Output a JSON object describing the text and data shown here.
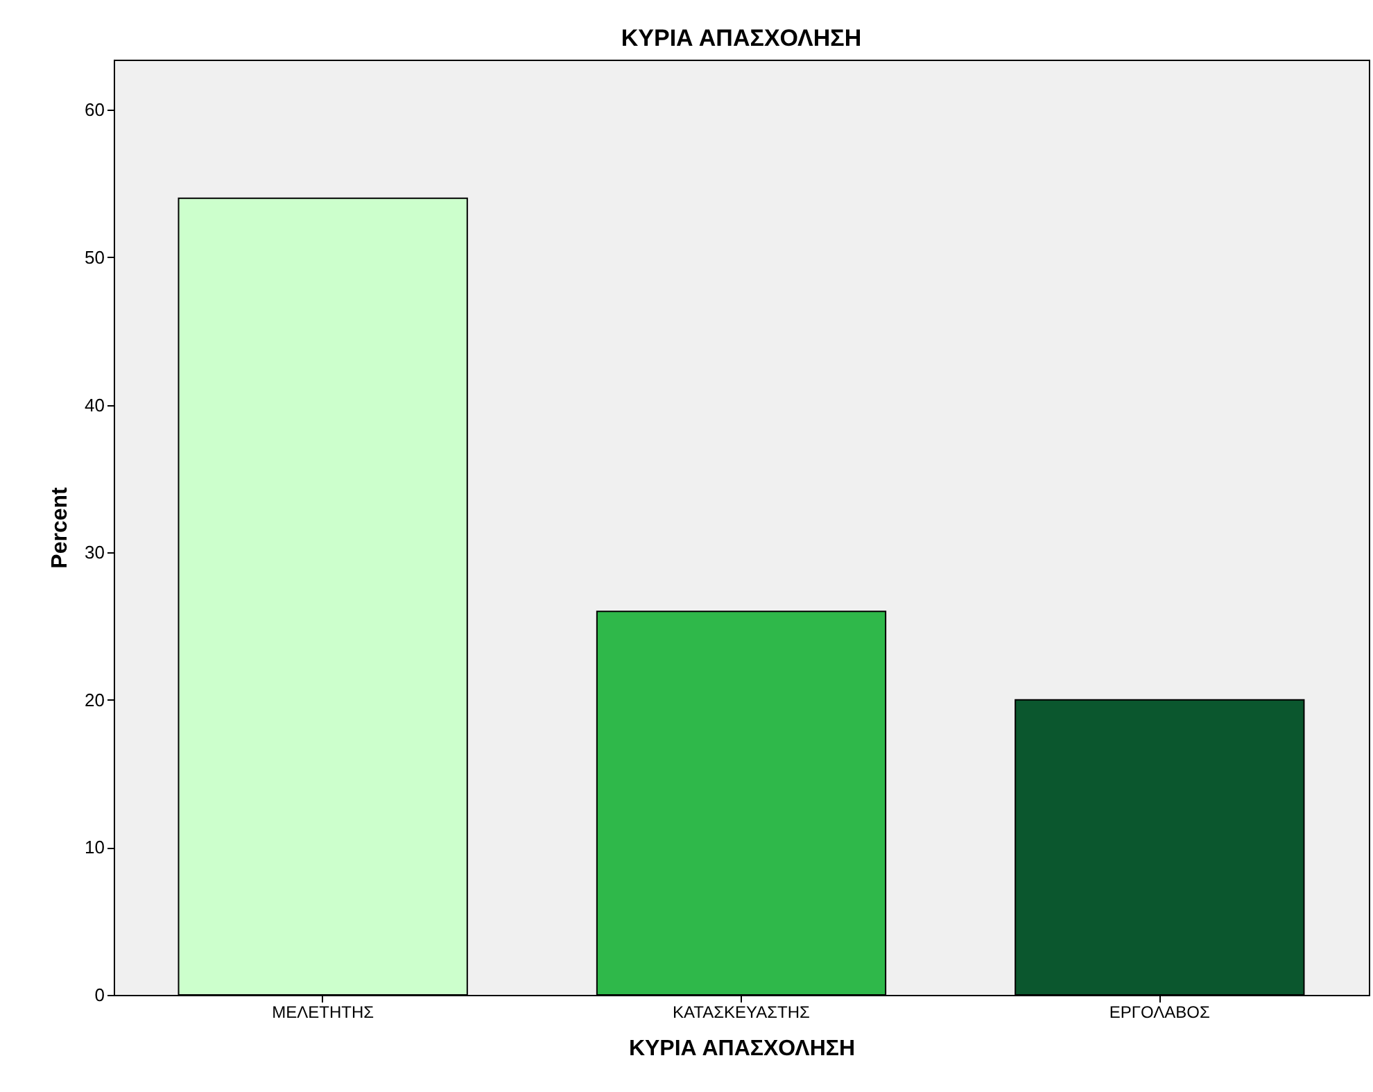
{
  "chart_data": {
    "type": "bar",
    "title": "ΚΥΡΙΑ ΑΠΑΣΧΟΛΗΣΗ",
    "xlabel": "ΚΥΡΙΑ ΑΠΑΣΧΟΛΗΣΗ",
    "ylabel": "Percent",
    "categories": [
      "ΜΕΛΕΤΗΤΗΣ",
      "ΚΑΤΑΣΚΕΥΑΣΤΗΣ",
      "ΕΡΓΟΛΑΒΟΣ"
    ],
    "values": [
      54,
      26,
      20
    ],
    "colors": [
      "#ccffcc",
      "#2fb84a",
      "#0b572e"
    ],
    "ylim": [
      0,
      63.4
    ],
    "yticks": [
      0,
      10,
      20,
      30,
      40,
      50,
      60
    ],
    "grid": false
  }
}
